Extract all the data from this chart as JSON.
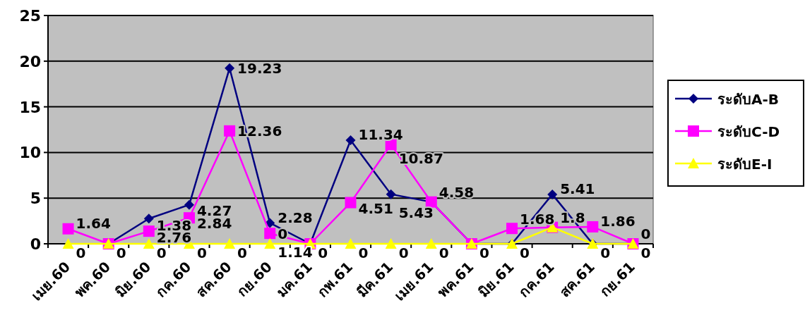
{
  "chart_data": {
    "type": "line",
    "categories": [
      "เมย.60",
      "พค.60",
      "มิย.60",
      "กค.60",
      "สค.60",
      "กย.60",
      "มค.61",
      "กพ.61",
      "มีค.61",
      "เมย.61",
      "พค.61",
      "มิย.61",
      "กค.61",
      "สค.61",
      "กย.61"
    ],
    "series": [
      {
        "name": "ระดับA-B",
        "color": "#000080",
        "marker": "diamond",
        "values": [
          null,
          0,
          2.76,
          4.27,
          19.23,
          2.28,
          0,
          11.34,
          5.43,
          4.58,
          0,
          0,
          5.41,
          0,
          0
        ],
        "value_labels": [
          null,
          null,
          "2.76",
          "4.27",
          "19.23",
          "2.28",
          null,
          "11.34",
          "5.43",
          null,
          null,
          null,
          "5.41",
          null,
          null
        ]
      },
      {
        "name": "ระดับC-D",
        "color": "#ff00ff",
        "marker": "square",
        "values": [
          1.64,
          0,
          1.38,
          2.84,
          12.36,
          1.14,
          0,
          4.51,
          10.87,
          4.58,
          0,
          1.68,
          1.8,
          1.86,
          0
        ],
        "value_labels": [
          "1.64",
          null,
          "1.38",
          "2.84",
          "12.36",
          "1.14",
          null,
          "4.51",
          "10.87",
          "4.58",
          null,
          "1.68",
          null,
          "1.86",
          "0"
        ]
      },
      {
        "name": "ระดับE-I",
        "color": "#ffff00",
        "marker": "triangle",
        "values": [
          0,
          0,
          0,
          0,
          0,
          0,
          0,
          0,
          0,
          0,
          0,
          0,
          1.8,
          0,
          0
        ],
        "value_labels": [
          "0",
          "0",
          "0",
          "0",
          "0",
          "0",
          "0",
          "0",
          "0",
          "0",
          "0",
          "0",
          "1.8",
          "0",
          "0"
        ]
      }
    ],
    "ylim": [
      0,
      25
    ],
    "yticks": [
      0,
      5,
      10,
      15,
      20,
      25
    ],
    "grid": "y",
    "legend": "right"
  }
}
